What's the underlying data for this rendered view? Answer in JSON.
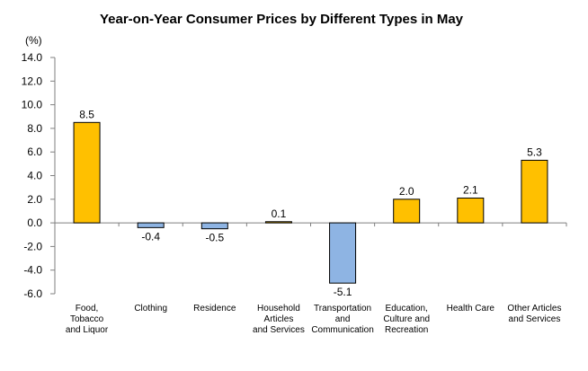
{
  "chart_data": {
    "type": "bar",
    "title": "Year-on-Year Consumer Prices by Different Types in May",
    "unit_label": "(%)",
    "categories": [
      [
        "Food,",
        "Tobacco",
        "and Liquor"
      ],
      [
        "Clothing"
      ],
      [
        "Residence"
      ],
      [
        "Household",
        "Articles",
        "and Services"
      ],
      [
        "Transportation",
        "and",
        "Communication"
      ],
      [
        "Education,",
        "Culture and",
        "Recreation"
      ],
      [
        "Health Care"
      ],
      [
        "Other Articles",
        "and Services"
      ]
    ],
    "values": [
      8.5,
      -0.4,
      -0.5,
      0.1,
      -5.1,
      2.0,
      2.1,
      5.3
    ],
    "value_labels": [
      "8.5",
      "-0.4",
      "-0.5",
      "0.1",
      "-5.1",
      "2.0",
      "2.1",
      "5.3"
    ],
    "ylim": [
      -6.0,
      14.0
    ],
    "yticks": [
      "14.0",
      "12.0",
      "10.0",
      "8.0",
      "6.0",
      "4.0",
      "2.0",
      "0.0",
      "-2.0",
      "-4.0",
      "-6.0"
    ],
    "ytick_values": [
      14,
      12,
      10,
      8,
      6,
      4,
      2,
      0,
      -2,
      -4,
      -6
    ],
    "grid": false,
    "colors": {
      "positive": "#ffc000",
      "negative": "#8eb4e3",
      "border": "#000000",
      "axis": "#7f7f7f"
    }
  }
}
